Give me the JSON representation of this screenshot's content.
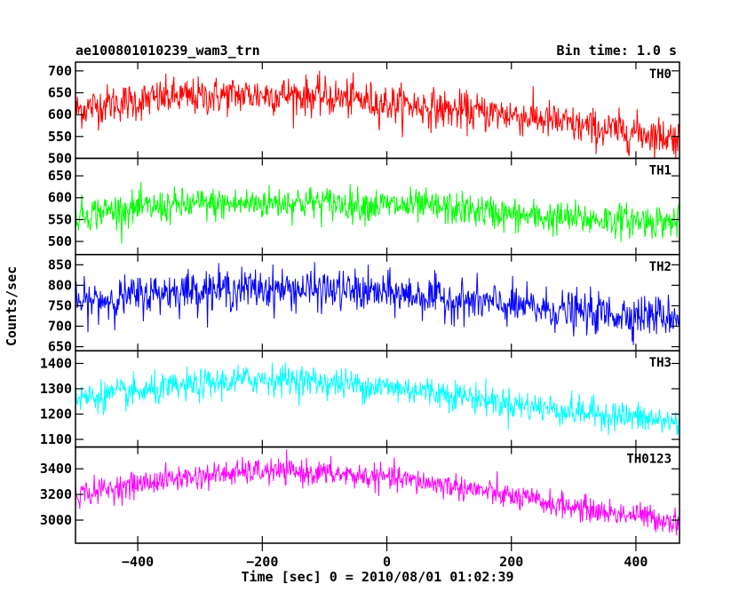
{
  "header": {
    "title": "ae100801010239_wam3_trn",
    "bin_time": "Bin time: 1.0 s"
  },
  "chart_data": {
    "type": "line",
    "ylabel": "Counts/sec",
    "xlabel": "Time [sec] 0 = 2010/08/01 01:02:39",
    "xlim": [
      -500,
      470
    ],
    "x_ticks": [
      -400,
      -200,
      0,
      200,
      400
    ],
    "grid": false,
    "panels": [
      {
        "name": "TH0",
        "color": "#ff0000",
        "ylim": [
          500,
          720
        ],
        "y_ticks": [
          500,
          550,
          600,
          650,
          700
        ],
        "x": [
          -500,
          -450,
          -400,
          -350,
          -300,
          -250,
          -200,
          -150,
          -100,
          -50,
          0,
          50,
          100,
          150,
          200,
          250,
          300,
          350,
          400,
          450,
          470
        ],
        "y": [
          610,
          625,
          630,
          640,
          640,
          645,
          645,
          645,
          640,
          635,
          625,
          620,
          610,
          605,
          600,
          590,
          575,
          565,
          560,
          550,
          548
        ],
        "noise": 40
      },
      {
        "name": "TH1",
        "color": "#00ff00",
        "ylim": [
          470,
          690
        ],
        "y_ticks": [
          500,
          550,
          600,
          650
        ],
        "x": [
          -500,
          -450,
          -400,
          -350,
          -300,
          -250,
          -200,
          -150,
          -100,
          -50,
          0,
          50,
          100,
          150,
          200,
          250,
          300,
          350,
          400,
          450,
          470
        ],
        "y": [
          560,
          570,
          575,
          580,
          585,
          585,
          588,
          590,
          588,
          585,
          582,
          580,
          575,
          570,
          560,
          555,
          552,
          550,
          548,
          545,
          545
        ],
        "noise": 35
      },
      {
        "name": "TH2",
        "color": "#0000ff",
        "ylim": [
          640,
          875
        ],
        "y_ticks": [
          650,
          700,
          750,
          800,
          850
        ],
        "x": [
          -500,
          -450,
          -400,
          -350,
          -300,
          -250,
          -200,
          -150,
          -100,
          -50,
          0,
          50,
          100,
          150,
          200,
          250,
          300,
          350,
          400,
          450,
          470
        ],
        "y": [
          755,
          765,
          775,
          785,
          790,
          790,
          792,
          790,
          788,
          785,
          780,
          775,
          765,
          758,
          750,
          742,
          735,
          730,
          728,
          725,
          725
        ],
        "noise": 45
      },
      {
        "name": "TH3",
        "color": "#00ffff",
        "ylim": [
          1070,
          1450
        ],
        "y_ticks": [
          1100,
          1200,
          1300,
          1400
        ],
        "x": [
          -500,
          -450,
          -400,
          -350,
          -300,
          -250,
          -200,
          -150,
          -100,
          -50,
          0,
          50,
          100,
          150,
          200,
          250,
          300,
          350,
          400,
          450,
          470
        ],
        "y": [
          1260,
          1275,
          1285,
          1300,
          1315,
          1330,
          1340,
          1335,
          1325,
          1315,
          1305,
          1295,
          1280,
          1260,
          1240,
          1225,
          1210,
          1200,
          1185,
          1170,
          1165
        ],
        "noise": 55
      },
      {
        "name": "TH0123",
        "color": "#ff00ff",
        "ylim": [
          2820,
          3570
        ],
        "y_ticks": [
          3000,
          3200,
          3400
        ],
        "x": [
          -500,
          -450,
          -400,
          -350,
          -300,
          -250,
          -200,
          -150,
          -100,
          -50,
          0,
          50,
          100,
          150,
          200,
          250,
          300,
          350,
          400,
          450,
          470
        ],
        "y": [
          3200,
          3240,
          3280,
          3320,
          3340,
          3365,
          3380,
          3375,
          3365,
          3345,
          3330,
          3300,
          3270,
          3230,
          3180,
          3140,
          3100,
          3060,
          3040,
          3000,
          2980
        ],
        "noise": 90
      }
    ]
  }
}
